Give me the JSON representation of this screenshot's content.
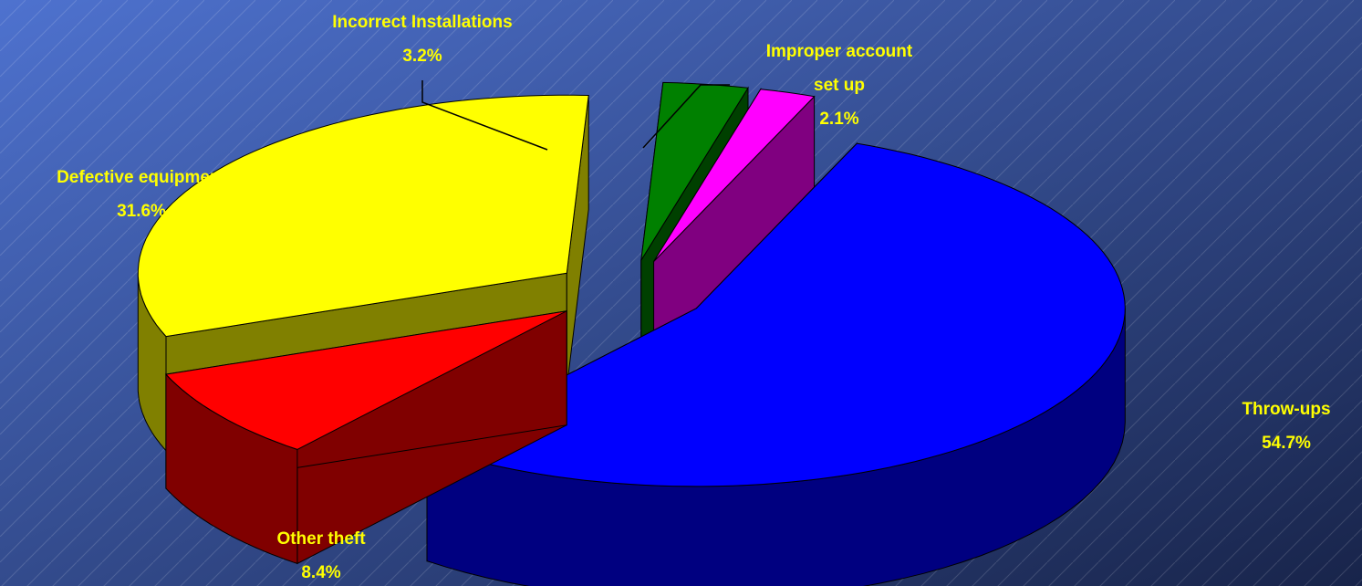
{
  "chart_data": {
    "type": "pie",
    "categories": [
      "Throw-ups",
      "Other theft",
      "Defective equipment",
      "Incorrect Installations",
      "Improper account set up"
    ],
    "values": [
      54.7,
      8.4,
      31.6,
      3.2,
      2.1
    ],
    "value_labels": [
      "54.7%",
      "8.4%",
      "31.6%",
      "3.2%",
      "2.1%"
    ],
    "colors": [
      "#0000ff",
      "#ff0000",
      "#ffff00",
      "#008000",
      "#ff00ff"
    ],
    "three_d": true,
    "exploded": true
  }
}
